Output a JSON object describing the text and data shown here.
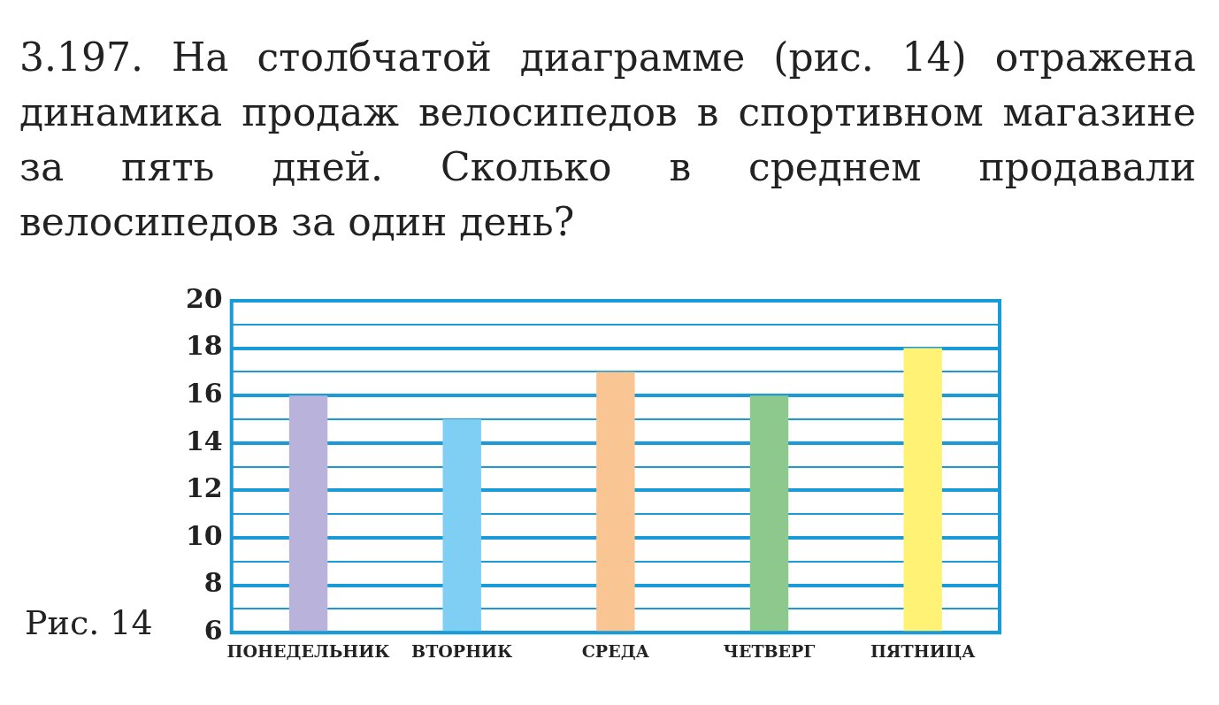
{
  "chart_data": {
    "type": "bar",
    "title": "3.197. На столбчатой диаграмме (рис. 14) отражена динамика продаж велосипедов в спортивном магазине за пять дней. Сколько в среднем продавали велосипедов за один день?",
    "categories": [
      "ПОНЕДЕЛЬНИК",
      "ВТОРНИК",
      "СРЕДА",
      "ЧЕТВЕРГ",
      "ПЯТНИЦА"
    ],
    "values": [
      16,
      15,
      17,
      16,
      18
    ],
    "colors": [
      "#b9b3dc",
      "#7fcff5",
      "#f9c592",
      "#8dc98c",
      "#fff275"
    ],
    "ylim": [
      6,
      20
    ],
    "yticks": [
      6,
      {
        "value": 7,
        "label": null
      },
      8,
      {
        "value": 9,
        "label": null
      },
      10,
      {
        "value": 11,
        "label": null
      },
      12,
      {
        "value": 13,
        "label": null
      },
      14,
      {
        "value": 15,
        "label": null
      },
      16,
      {
        "value": 17,
        "label": null
      },
      18,
      {
        "value": 19,
        "label": null
      },
      20
    ],
    "grid": "y",
    "annotations": [
      "Рис. 14"
    ]
  }
}
